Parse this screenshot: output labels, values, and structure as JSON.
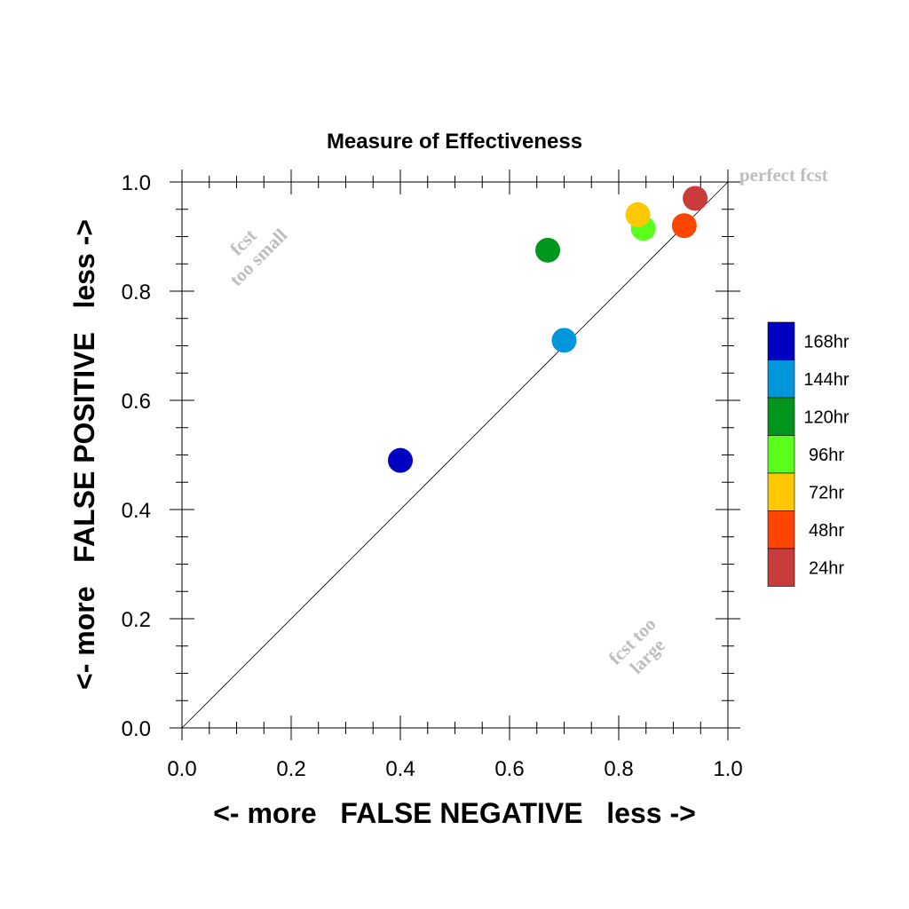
{
  "chart_data": {
    "type": "scatter",
    "title": "Measure of Effectiveness",
    "xlabel": "<- more   FALSE NEGATIVE   less ->",
    "ylabel": "<- more   FALSE POSITIVE   less ->",
    "xlim": [
      0.0,
      1.0
    ],
    "ylim": [
      0.0,
      1.0
    ],
    "x_ticks": [
      "0.0",
      "0.2",
      "0.4",
      "0.6",
      "0.8",
      "1.0"
    ],
    "y_ticks": [
      "0.0",
      "0.2",
      "0.4",
      "0.6",
      "0.8",
      "1.0"
    ],
    "reference_line": "diagonal",
    "annotations": {
      "perfect": "perfect fcst",
      "too_small_line1": "fcst",
      "too_small_line2": "too small",
      "too_large_line1": "fcst too",
      "too_large_line2": "large"
    },
    "legend_position": "right",
    "series": [
      {
        "name": "168hr",
        "color": "#0000c0",
        "x": 0.4,
        "y": 0.49
      },
      {
        "name": "144hr",
        "color": "#0096dc",
        "x": 0.7,
        "y": 0.71
      },
      {
        "name": "120hr",
        "color": "#00961e",
        "x": 0.67,
        "y": 0.875
      },
      {
        "name": "96hr",
        "color": "#5aff1e",
        "x": 0.845,
        "y": 0.915
      },
      {
        "name": "72hr",
        "color": "#ffc800",
        "x": 0.835,
        "y": 0.94
      },
      {
        "name": "48hr",
        "color": "#ff4600",
        "x": 0.92,
        "y": 0.92
      },
      {
        "name": "24hr",
        "color": "#c83c3c",
        "x": 0.94,
        "y": 0.97
      }
    ]
  }
}
